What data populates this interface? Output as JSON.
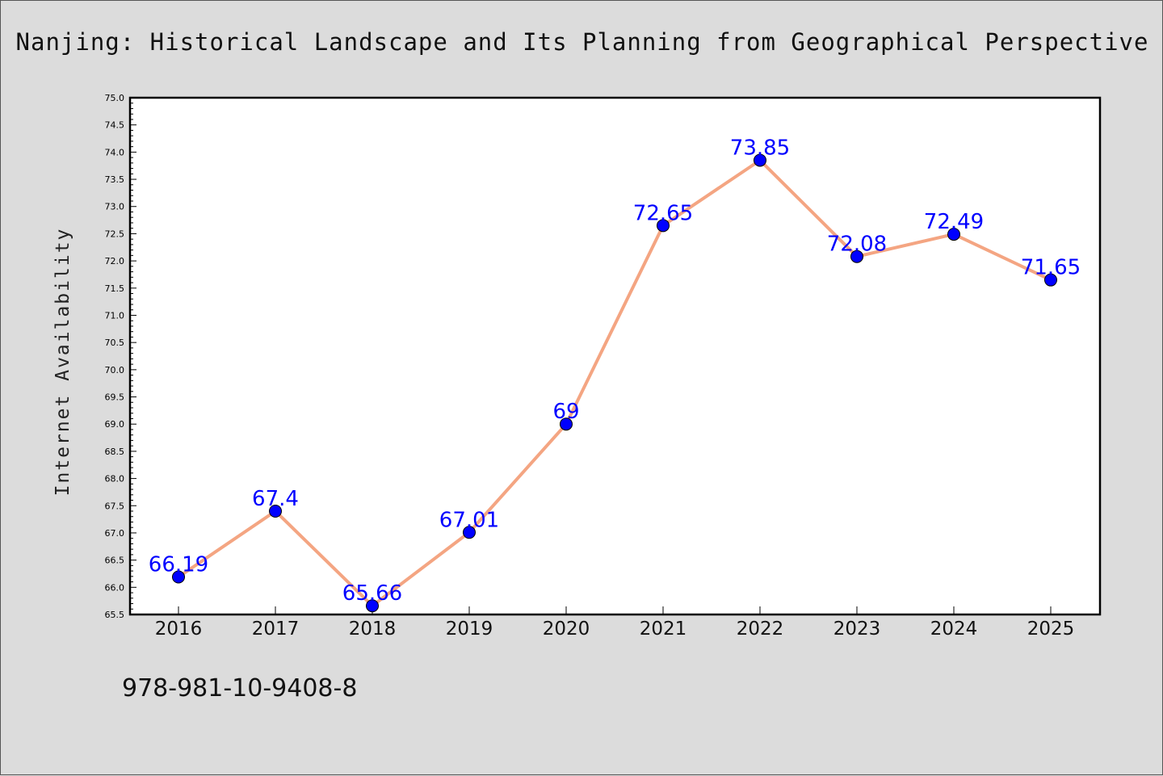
{
  "header": {
    "title": "Nanjing: Historical Landscape and Its Planning from Geographical Perspective"
  },
  "footer": {
    "isbn": "978-981-10-9408-8"
  },
  "chart_data": {
    "type": "line",
    "title": "Nanjing: Historical Landscape and Its Planning from Geographical Perspective",
    "xlabel": "",
    "ylabel": "Internet Availability",
    "categories": [
      "2016",
      "2017",
      "2018",
      "2019",
      "2020",
      "2021",
      "2022",
      "2023",
      "2024",
      "2025"
    ],
    "series": [
      {
        "values": [
          66.19,
          67.4,
          65.66,
          67.01,
          69,
          72.65,
          73.85,
          72.08,
          72.49,
          71.65
        ],
        "labels": [
          "66.19",
          "67.4",
          "65.66",
          "67.01",
          "69",
          "72.65",
          "73.85",
          "72.08",
          "72.49",
          "71.65"
        ],
        "line_color": "#f4a582",
        "marker_color": "#0000ff"
      }
    ],
    "ylim": [
      65.5,
      75.0
    ],
    "yticks": [
      "65.5",
      "66.0",
      "66.5",
      "67.0",
      "67.5",
      "68.0",
      "68.5",
      "69.0",
      "69.5",
      "70.0",
      "70.5",
      "71.0",
      "71.5",
      "72.0",
      "72.5",
      "73.0",
      "73.5",
      "74.0",
      "74.5",
      "75.0"
    ],
    "grid": false,
    "legend": "none",
    "background": "#dcdcdc",
    "plot_background": "#ffffff"
  }
}
